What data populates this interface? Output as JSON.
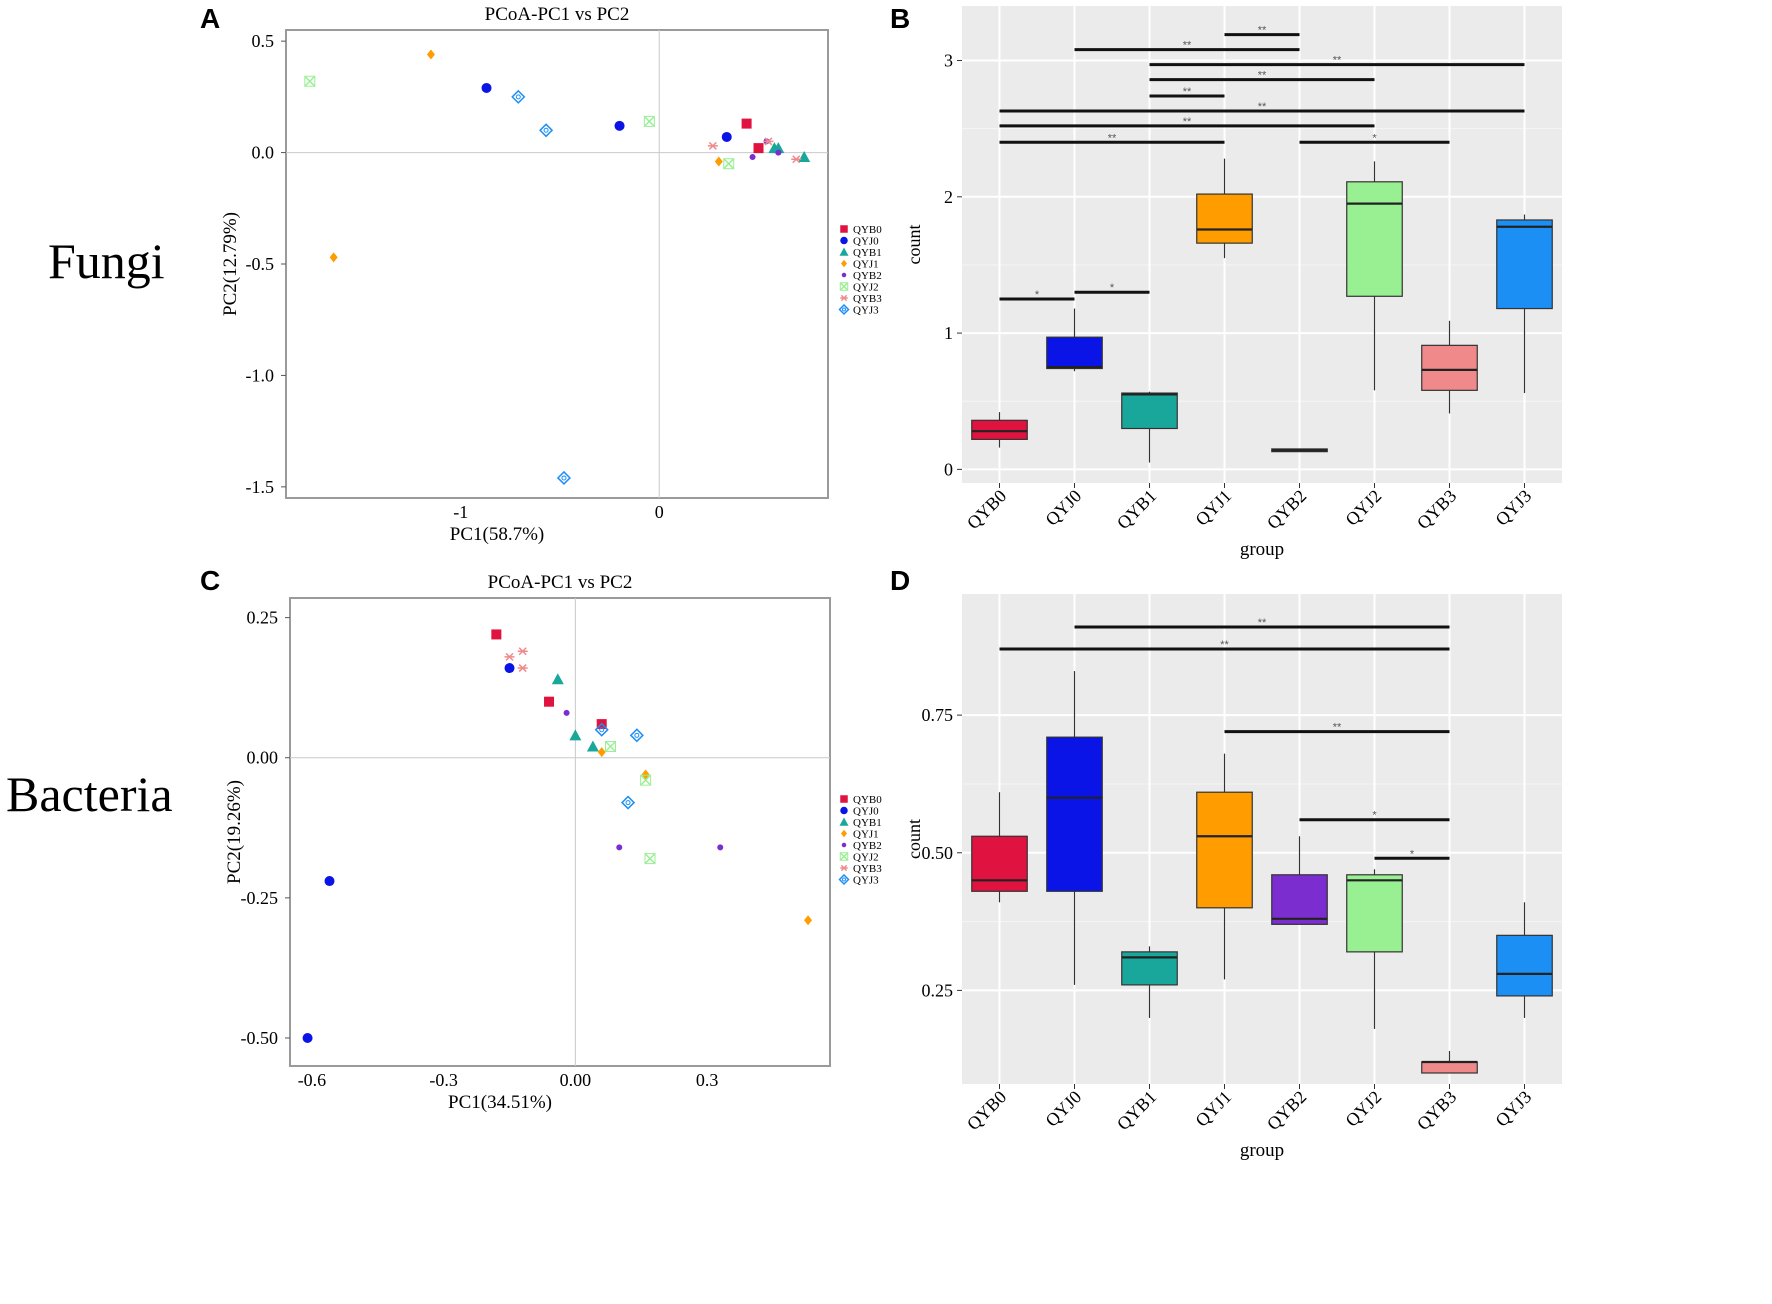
{
  "row_labels": {
    "fungi": "Fungi",
    "bacteria": "Bacteria"
  },
  "panel_letters": {
    "A": "A",
    "B": "B",
    "C": "C",
    "D": "D"
  },
  "colors": {
    "QYB0": "#e0123f",
    "QYJ0": "#0a14e6",
    "QYB1": "#1aa79b",
    "QYJ1": "#ff9c00",
    "QYB2": "#7b2dd0",
    "QYJ2": "#98f093",
    "QYB3": "#f08a8a",
    "QYJ3": "#1c8ff5"
  },
  "chart_data": [
    {
      "id": "A",
      "type": "scatter",
      "title": "PCoA-PC1 vs PC2",
      "xlabel": "PC1(58.7%)",
      "ylabel": "PC2(12.79%)",
      "xlim": [
        -1.88,
        0.85
      ],
      "ylim": [
        -1.55,
        0.55
      ],
      "xticks": [
        -1,
        0
      ],
      "xtick_labels": [
        "-1",
        "0"
      ],
      "yticks": [
        0.5,
        0.0,
        -0.5,
        -1.0,
        -1.5
      ],
      "ytick_labels": [
        "0.5",
        "0.0",
        "-0.5",
        "-1.0",
        "-1.5"
      ],
      "legend": [
        "QYB0",
        "QYJ0",
        "QYB1",
        "QYJ1",
        "QYB2",
        "QYJ2",
        "QYB3",
        "QYJ3"
      ],
      "series": [
        {
          "name": "QYB0",
          "marker": "square",
          "points": [
            [
              0.44,
              0.13
            ],
            [
              0.5,
              0.02
            ]
          ]
        },
        {
          "name": "QYJ0",
          "marker": "circle",
          "points": [
            [
              -0.87,
              0.29
            ],
            [
              -0.2,
              0.12
            ],
            [
              0.34,
              0.07
            ]
          ]
        },
        {
          "name": "QYB1",
          "marker": "triangle",
          "points": [
            [
              0.58,
              0.02
            ],
            [
              0.73,
              -0.02
            ],
            [
              0.6,
              0.02
            ]
          ]
        },
        {
          "name": "QYJ1",
          "marker": "diamond",
          "points": [
            [
              -1.15,
              0.44
            ],
            [
              -1.64,
              -0.47
            ],
            [
              0.3,
              -0.04
            ]
          ]
        },
        {
          "name": "QYB2",
          "marker": "dot",
          "points": [
            [
              0.54,
              0.05
            ],
            [
              0.47,
              -0.02
            ],
            [
              0.6,
              0.0
            ]
          ]
        },
        {
          "name": "QYJ2",
          "marker": "x",
          "points": [
            [
              -1.76,
              0.32
            ],
            [
              -0.05,
              0.14
            ],
            [
              0.35,
              -0.05
            ]
          ]
        },
        {
          "name": "QYB3",
          "marker": "star",
          "points": [
            [
              0.27,
              0.03
            ],
            [
              0.55,
              0.05
            ],
            [
              0.69,
              -0.03
            ]
          ]
        },
        {
          "name": "QYJ3",
          "marker": "diamond-open",
          "points": [
            [
              -0.71,
              0.25
            ],
            [
              -0.57,
              0.1
            ],
            [
              -0.48,
              -1.46
            ]
          ]
        }
      ]
    },
    {
      "id": "B",
      "type": "box",
      "xlabel": "group",
      "ylabel": "count",
      "ylim": [
        -0.1,
        3.4
      ],
      "yticks": [
        0,
        1,
        2,
        3
      ],
      "ytick_labels": [
        "0",
        "1",
        "2",
        "3"
      ],
      "categories": [
        "QYB0",
        "QYJ0",
        "QYB1",
        "QYJ1",
        "QYB2",
        "QYJ2",
        "QYB3",
        "QYJ3"
      ],
      "boxes": [
        {
          "min": 0.16,
          "q1": 0.22,
          "median": 0.28,
          "q3": 0.36,
          "max": 0.42
        },
        {
          "min": 0.72,
          "q1": 0.74,
          "median": 0.75,
          "q3": 0.97,
          "max": 1.18
        },
        {
          "min": 0.05,
          "q1": 0.3,
          "median": 0.55,
          "q3": 0.56,
          "max": 0.57
        },
        {
          "min": 1.55,
          "q1": 1.66,
          "median": 1.76,
          "q3": 2.02,
          "max": 2.28
        },
        {
          "min": 0.13,
          "q1": 0.13,
          "median": 0.14,
          "q3": 0.15,
          "max": 0.15
        },
        {
          "min": 0.58,
          "q1": 1.27,
          "median": 1.95,
          "q3": 2.11,
          "max": 2.26
        },
        {
          "min": 0.41,
          "q1": 0.58,
          "median": 0.73,
          "q3": 0.91,
          "max": 1.09
        },
        {
          "min": 0.56,
          "q1": 1.18,
          "median": 1.78,
          "q3": 1.83,
          "max": 1.87
        }
      ],
      "significance": [
        {
          "from": 4,
          "to": 5,
          "y": 3.19,
          "label": "**"
        },
        {
          "from": 2,
          "to": 5,
          "y": 3.08,
          "label": "**"
        },
        {
          "from": 3,
          "to": 8,
          "y": 2.97,
          "label": "**"
        },
        {
          "from": 3,
          "to": 6,
          "y": 2.86,
          "label": "**"
        },
        {
          "from": 3,
          "to": 4,
          "y": 2.74,
          "label": "**"
        },
        {
          "from": 1,
          "to": 8,
          "y": 2.63,
          "label": "**"
        },
        {
          "from": 1,
          "to": 6,
          "y": 2.52,
          "label": "**"
        },
        {
          "from": 1,
          "to": 4,
          "y": 2.4,
          "label": "**"
        },
        {
          "from": 5,
          "to": 7,
          "y": 2.4,
          "label": "*"
        },
        {
          "from": 1,
          "to": 2,
          "y": 1.25,
          "label": "*"
        },
        {
          "from": 2,
          "to": 3,
          "y": 1.3,
          "label": "*"
        }
      ]
    },
    {
      "id": "C",
      "type": "scatter",
      "title": "PCoA-PC1 vs PC2",
      "xlabel": "PC1(34.51%)",
      "ylabel": "PC2(19.26%)",
      "xlim": [
        -0.65,
        0.58
      ],
      "ylim": [
        -0.55,
        0.285
      ],
      "xticks": [
        -0.6,
        -0.3,
        0.0,
        0.3
      ],
      "xtick_labels": [
        "-0.6",
        "-0.3",
        "0.00",
        "0.3"
      ],
      "yticks": [
        0.25,
        0.0,
        -0.25,
        -0.5
      ],
      "ytick_labels": [
        "0.25",
        "0.00",
        "-0.25",
        "-0.50"
      ],
      "legend": [
        "QYB0",
        "QYJ0",
        "QYB1",
        "QYJ1",
        "QYB2",
        "QYJ2",
        "QYB3",
        "QYJ3"
      ],
      "series": [
        {
          "name": "QYB0",
          "marker": "square",
          "points": [
            [
              -0.18,
              0.22
            ],
            [
              -0.06,
              0.1
            ],
            [
              0.06,
              0.06
            ]
          ]
        },
        {
          "name": "QYJ0",
          "marker": "circle",
          "points": [
            [
              -0.15,
              0.16
            ],
            [
              -0.56,
              -0.22
            ],
            [
              -0.61,
              -0.5
            ]
          ]
        },
        {
          "name": "QYB1",
          "marker": "triangle",
          "points": [
            [
              -0.04,
              0.14
            ],
            [
              0.0,
              0.04
            ],
            [
              0.04,
              0.02
            ]
          ]
        },
        {
          "name": "QYJ1",
          "marker": "diamond",
          "points": [
            [
              0.06,
              0.01
            ],
            [
              0.16,
              -0.03
            ],
            [
              0.53,
              -0.29
            ]
          ]
        },
        {
          "name": "QYB2",
          "marker": "dot",
          "points": [
            [
              -0.02,
              0.08
            ],
            [
              0.1,
              -0.16
            ],
            [
              0.33,
              -0.16
            ]
          ]
        },
        {
          "name": "QYJ2",
          "marker": "x",
          "points": [
            [
              0.08,
              0.02
            ],
            [
              0.16,
              -0.04
            ],
            [
              0.17,
              -0.18
            ]
          ]
        },
        {
          "name": "QYB3",
          "marker": "star",
          "points": [
            [
              -0.15,
              0.18
            ],
            [
              -0.12,
              0.19
            ],
            [
              -0.12,
              0.16
            ]
          ]
        },
        {
          "name": "QYJ3",
          "marker": "diamond-open",
          "points": [
            [
              0.06,
              0.05
            ],
            [
              0.14,
              0.04
            ],
            [
              0.12,
              -0.08
            ]
          ]
        }
      ]
    },
    {
      "id": "D",
      "type": "box",
      "xlabel": "group",
      "ylabel": "count",
      "ylim": [
        0.08,
        0.97
      ],
      "yticks": [
        0.25,
        0.5,
        0.75
      ],
      "ytick_labels": [
        "0.25",
        "0.50",
        "0.75"
      ],
      "categories": [
        "QYB0",
        "QYJ0",
        "QYB1",
        "QYJ1",
        "QYB2",
        "QYJ2",
        "QYB3",
        "QYJ3"
      ],
      "boxes": [
        {
          "min": 0.41,
          "q1": 0.43,
          "median": 0.45,
          "q3": 0.53,
          "max": 0.61
        },
        {
          "min": 0.26,
          "q1": 0.43,
          "median": 0.6,
          "q3": 0.71,
          "max": 0.83
        },
        {
          "min": 0.2,
          "q1": 0.26,
          "median": 0.31,
          "q3": 0.32,
          "max": 0.33
        },
        {
          "min": 0.27,
          "q1": 0.4,
          "median": 0.53,
          "q3": 0.61,
          "max": 0.68
        },
        {
          "min": 0.37,
          "q1": 0.37,
          "median": 0.38,
          "q3": 0.46,
          "max": 0.53
        },
        {
          "min": 0.18,
          "q1": 0.32,
          "median": 0.45,
          "q3": 0.46,
          "max": 0.47
        },
        {
          "min": 0.1,
          "q1": 0.1,
          "median": 0.12,
          "q3": 0.12,
          "max": 0.14
        },
        {
          "min": 0.2,
          "q1": 0.24,
          "median": 0.28,
          "q3": 0.35,
          "max": 0.41
        }
      ],
      "significance": [
        {
          "from": 2,
          "to": 7,
          "y": 0.91,
          "label": "**"
        },
        {
          "from": 1,
          "to": 7,
          "y": 0.87,
          "label": "**"
        },
        {
          "from": 4,
          "to": 7,
          "y": 0.72,
          "label": "**"
        },
        {
          "from": 5,
          "to": 7,
          "y": 0.56,
          "label": "*"
        },
        {
          "from": 6,
          "to": 7,
          "y": 0.49,
          "label": "*"
        }
      ]
    }
  ]
}
